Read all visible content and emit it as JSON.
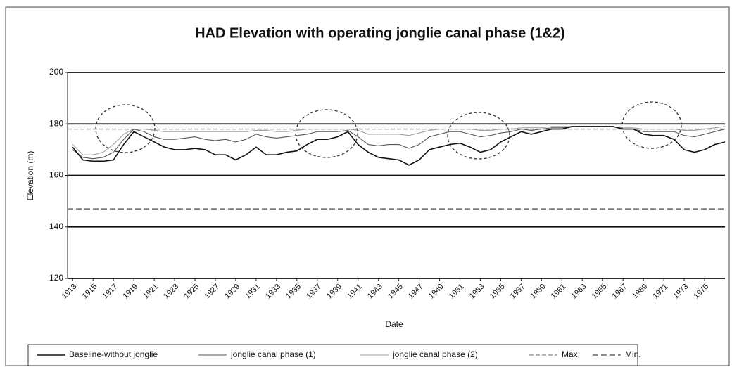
{
  "chart_data": {
    "type": "line",
    "title": "HAD Elevation with operating jonglie canal phase (1&2)",
    "xlabel": "Date",
    "ylabel": "Elevation (m)",
    "x": [
      1913,
      1914,
      1915,
      1916,
      1917,
      1918,
      1919,
      1920,
      1921,
      1922,
      1923,
      1924,
      1925,
      1926,
      1927,
      1928,
      1929,
      1930,
      1931,
      1932,
      1933,
      1934,
      1935,
      1936,
      1937,
      1938,
      1939,
      1940,
      1941,
      1942,
      1943,
      1944,
      1945,
      1946,
      1947,
      1948,
      1949,
      1950,
      1951,
      1952,
      1953,
      1954,
      1955,
      1956,
      1957,
      1958,
      1959,
      1960,
      1961,
      1962,
      1963,
      1964,
      1965,
      1966,
      1967,
      1968,
      1969,
      1970,
      1971,
      1972,
      1973,
      1974,
      1975,
      1976,
      1977
    ],
    "xlim": [
      1912.5,
      1977
    ],
    "xticks": [
      1913,
      1915,
      1917,
      1919,
      1921,
      1923,
      1925,
      1927,
      1929,
      1931,
      1933,
      1935,
      1937,
      1939,
      1941,
      1943,
      1945,
      1947,
      1949,
      1951,
      1953,
      1955,
      1957,
      1959,
      1961,
      1963,
      1965,
      1967,
      1969,
      1971,
      1973,
      1975
    ],
    "ylim": [
      120,
      200
    ],
    "yticks": [
      120,
      140,
      160,
      180,
      200
    ],
    "grid": true,
    "series": [
      {
        "name": "Baseline-without jonglie",
        "color": "#111111",
        "width": 1.6,
        "values": [
          171,
          166,
          165.5,
          165.5,
          166,
          172,
          177,
          175,
          173,
          171,
          170,
          170,
          170.5,
          170,
          168,
          168,
          166,
          168,
          171,
          168,
          168,
          169,
          169.5,
          172,
          174,
          174,
          175,
          177,
          172,
          169,
          167,
          166.5,
          166,
          164,
          166,
          170,
          171,
          172,
          172.5,
          171,
          169,
          170,
          173,
          175,
          177,
          176,
          177,
          178,
          178,
          179,
          179,
          179,
          179,
          179,
          178,
          178,
          176,
          175.5,
          175.5,
          174,
          170,
          169,
          170,
          172,
          173
        ]
      },
      {
        "name": "jonglie canal phase (1)",
        "color": "#555555",
        "width": 1.1,
        "values": [
          170,
          167,
          166.5,
          167,
          169,
          174,
          178,
          177,
          175,
          174,
          174,
          174.5,
          175,
          174,
          173.5,
          174,
          173,
          174,
          176,
          175,
          174.5,
          175,
          175.5,
          176,
          177,
          177,
          177,
          177.5,
          175,
          172,
          171.5,
          172,
          172,
          170.5,
          172,
          175,
          176,
          177,
          177,
          176,
          175,
          175.5,
          176.5,
          177,
          178,
          177.5,
          178,
          178.5,
          178.5,
          179,
          179,
          179,
          179,
          179,
          178,
          178,
          177,
          177,
          177,
          177,
          175.5,
          175,
          176,
          177,
          178
        ]
      },
      {
        "name": "jonglie canal phase (2)",
        "color": "#a0a0a0",
        "width": 1.1,
        "values": [
          172,
          168,
          168,
          169,
          172,
          176,
          178,
          178,
          177.5,
          177,
          177,
          177,
          177,
          177,
          177,
          177,
          177,
          177,
          177.5,
          177.5,
          177,
          177,
          177.5,
          178,
          178,
          178,
          178,
          178,
          177.5,
          176,
          176,
          176,
          176,
          175.5,
          176.5,
          177.5,
          178,
          178,
          178,
          178,
          177.5,
          177.5,
          178,
          178,
          178.5,
          178.5,
          178.5,
          179,
          179,
          179,
          179,
          179,
          179,
          179,
          178.5,
          178.5,
          178,
          178,
          178,
          178,
          177.5,
          177.5,
          178,
          178.5,
          179
        ]
      }
    ],
    "reference_lines": [
      {
        "name": "Max.",
        "value": 178,
        "color": "#9a9a9a",
        "dash": "6 3"
      },
      {
        "name": "Min.",
        "value": 147,
        "color": "#666666",
        "dash": "8 4"
      }
    ]
  }
}
